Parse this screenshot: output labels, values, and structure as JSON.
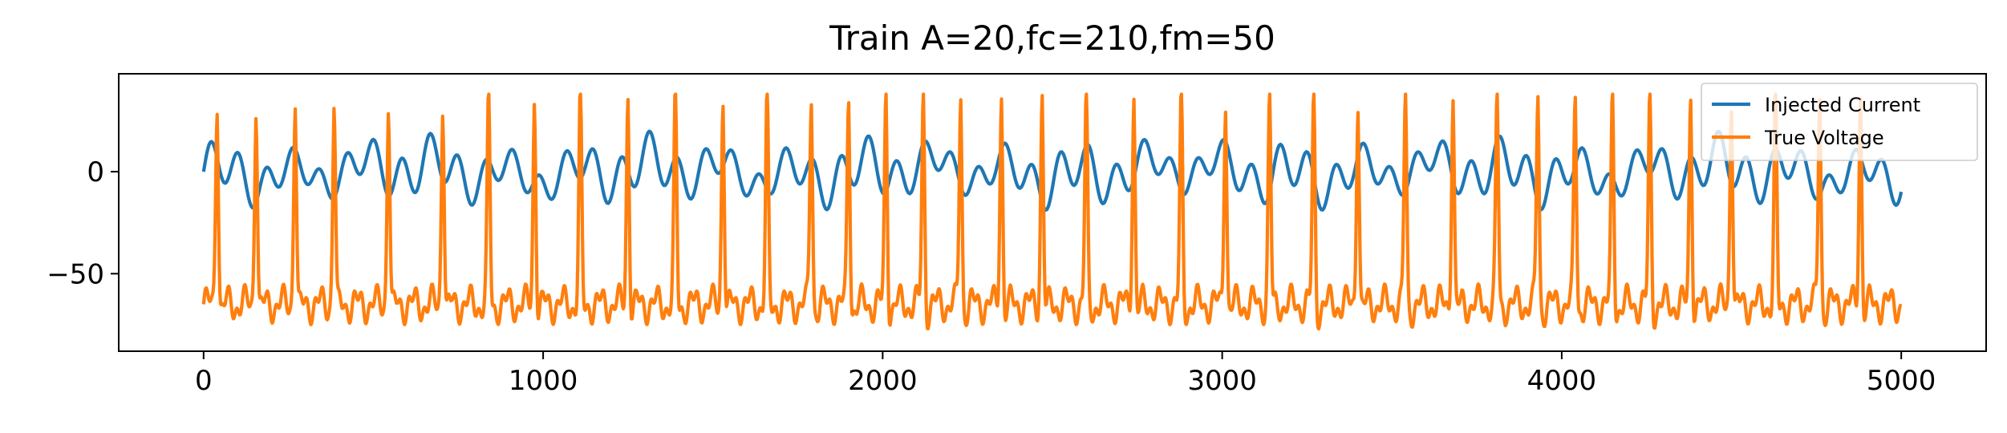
{
  "chart_data": {
    "type": "line",
    "title": "Train A=20,fc=210,fm=50",
    "xlabel": "",
    "ylabel": "",
    "xlim": [
      -250,
      5250
    ],
    "ylim": [
      -88,
      48
    ],
    "x_ticks": [
      0,
      1000,
      2000,
      3000,
      4000,
      5000
    ],
    "x_tick_labels": [
      "0",
      "1000",
      "2000",
      "3000",
      "4000",
      "5000"
    ],
    "y_ticks": [
      0,
      -50
    ],
    "y_tick_labels": [
      "0",
      "−50"
    ],
    "grid": false,
    "legend_position": "top-right",
    "series": [
      {
        "name": "Injected Current",
        "color": "#1f77b4",
        "x_range": [
          0,
          5000
        ],
        "points": 5001,
        "description_params": {
          "amplitude": 20,
          "fc": 210,
          "fm": 50
        },
        "approx_range": [
          -20,
          20
        ]
      },
      {
        "name": "True Voltage",
        "color": "#ff7f0e",
        "x_range": [
          0,
          5000
        ],
        "spike_times": [
          40,
          155,
          270,
          385,
          545,
          705,
          840,
          975,
          1110,
          1250,
          1390,
          1530,
          1660,
          1790,
          1900,
          2010,
          2120,
          2230,
          2350,
          2470,
          2600,
          2740,
          2880,
          3010,
          3140,
          3270,
          3400,
          3540,
          3680,
          3810,
          3930,
          4040,
          4150,
          4260,
          4380,
          4500,
          4630,
          4760,
          4880
        ],
        "spike_peak": 38,
        "rest": -65,
        "trough": -80
      }
    ]
  }
}
